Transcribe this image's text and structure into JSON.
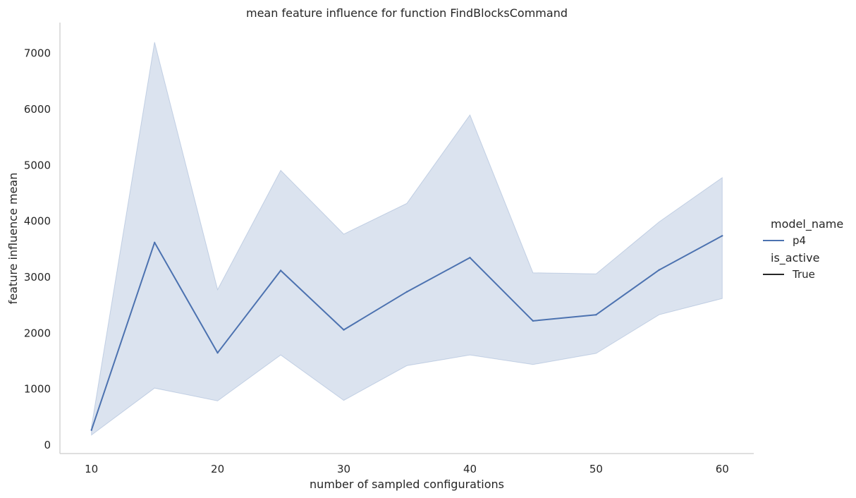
{
  "chart_data": {
    "type": "line",
    "title": "mean feature influence for function FindBlocksCommand",
    "xlabel": "number of sampled configurations",
    "ylabel": "feature influence mean",
    "xlim": [
      7.5,
      62.5
    ],
    "ylim": [
      -150,
      7550
    ],
    "x_ticks": [
      10,
      20,
      30,
      40,
      50,
      60
    ],
    "y_ticks": [
      0,
      1000,
      2000,
      3000,
      4000,
      5000,
      6000,
      7000
    ],
    "grid": false,
    "x": [
      10,
      15,
      20,
      25,
      30,
      35,
      40,
      45,
      50,
      55,
      60
    ],
    "series": [
      {
        "name": "p4",
        "color": "#4c72b0",
        "values": [
          270,
          3620,
          1650,
          3120,
          2060,
          2740,
          3350,
          2220,
          2330,
          3130,
          3740
        ],
        "ci_lower": [
          180,
          1020,
          790,
          1610,
          800,
          1420,
          1610,
          1440,
          1640,
          2330,
          2620
        ],
        "ci_upper": [
          330,
          7200,
          2780,
          4910,
          3770,
          4320,
          5900,
          3080,
          3060,
          3990,
          4780
        ]
      }
    ],
    "legend": {
      "placement": "right",
      "hue_title": "model_name",
      "hue_entries": [
        {
          "label": "p4",
          "color": "#4c72b0"
        }
      ],
      "style_title": "is_active",
      "style_entries": [
        {
          "label": "True",
          "color": "#262626"
        }
      ]
    }
  }
}
